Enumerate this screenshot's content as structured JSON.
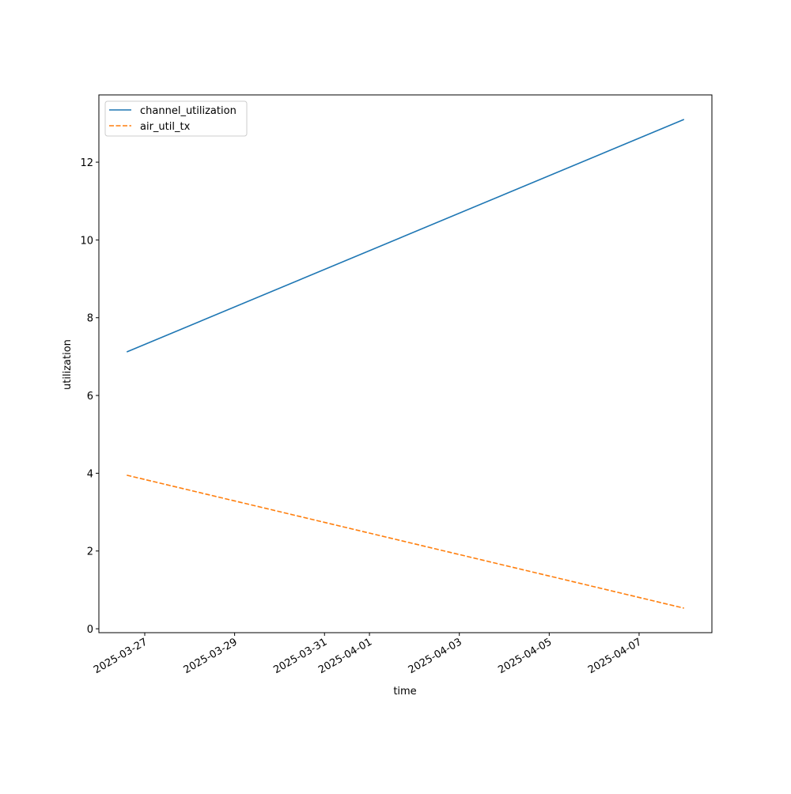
{
  "chart_data": {
    "type": "line",
    "xlabel": "time",
    "ylabel": "utilization",
    "x": [
      "2025-03-26T14:24",
      "2025-04-08T00:00"
    ],
    "series": [
      {
        "name": "channel_utilization",
        "color": "#1f77b4",
        "linestyle": "solid",
        "values": [
          7.12,
          13.1
        ]
      },
      {
        "name": "air_util_tx",
        "color": "#ff7f0e",
        "linestyle": "dashed",
        "values": [
          3.95,
          0.53
        ]
      }
    ],
    "xlim": [
      "2025-03-25T23:30",
      "2025-04-08T14:53"
    ],
    "xticks": [
      "2025-03-27",
      "2025-03-29",
      "2025-03-31",
      "2025-04-01",
      "2025-04-03",
      "2025-04-05",
      "2025-04-07"
    ],
    "ylim": [
      -0.1,
      13.73
    ],
    "yticks": [
      0,
      2,
      4,
      6,
      8,
      10,
      12
    ],
    "grid": false,
    "legend": "upper-left"
  }
}
